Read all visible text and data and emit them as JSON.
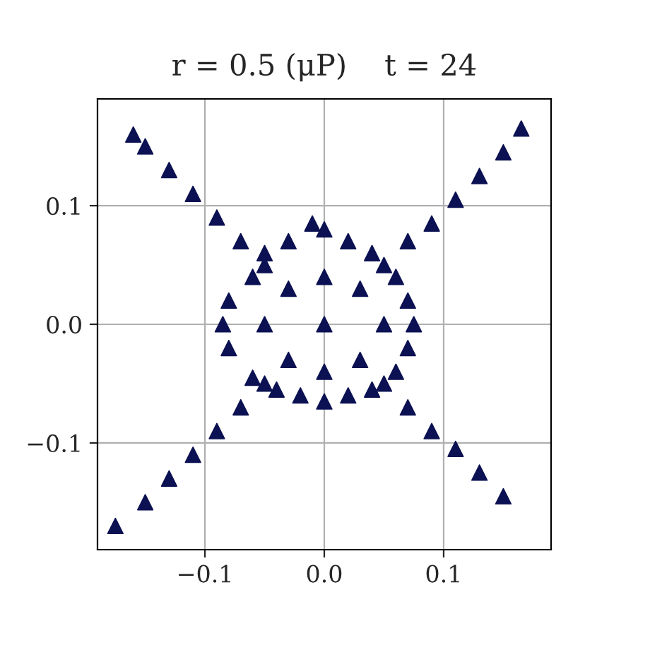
{
  "chart_data": {
    "type": "scatter",
    "title": "r = 0.5 (μP)    t = 24",
    "x": [
      0.07,
      0.09,
      0.11,
      0.13,
      0.15,
      0.165,
      -0.07,
      -0.09,
      -0.11,
      -0.13,
      -0.15,
      -0.16,
      -0.07,
      -0.09,
      -0.11,
      -0.13,
      -0.15,
      -0.175,
      0.07,
      0.09,
      0.11,
      0.13,
      0.15,
      0,
      -0.01,
      0.02,
      -0.03,
      0.04,
      -0.05,
      0.06,
      -0.06,
      0.07,
      -0.08,
      0.075,
      -0.085,
      0.07,
      -0.08,
      0.06,
      -0.06,
      0.04,
      -0.04,
      0.02,
      -0.02,
      0,
      0,
      0.03,
      -0.03,
      0.03,
      -0.03,
      0.05,
      -0.05,
      0,
      0,
      0.05,
      -0.05,
      0.05,
      -0.05
    ],
    "series": [
      {
        "color": "#0b1152",
        "values": [
          0.07,
          0.085,
          0.105,
          0.125,
          0.145,
          0.165,
          0.07,
          0.09,
          0.11,
          0.13,
          0.15,
          0.16,
          -0.07,
          -0.09,
          -0.11,
          -0.13,
          -0.15,
          -0.17,
          -0.07,
          -0.09,
          -0.105,
          -0.125,
          -0.145,
          0.08,
          0.085,
          0.07,
          0.07,
          0.06,
          0.06,
          0.04,
          0.04,
          0.02,
          0.02,
          0,
          0,
          -0.02,
          -0.02,
          -0.04,
          -0.045,
          -0.055,
          -0.055,
          -0.06,
          -0.06,
          -0.065,
          0,
          0.03,
          0.03,
          -0.03,
          -0.03,
          0,
          0,
          0.04,
          -0.04,
          0.05,
          -0.05,
          -0.05,
          0.05
        ]
      }
    ],
    "xlim": [
      -0.19,
      0.19
    ],
    "ylim": [
      -0.19,
      0.19
    ],
    "xticks": [
      {
        "value": -0.1,
        "label": "−0.1"
      },
      {
        "value": 0,
        "label": "0.0"
      },
      {
        "value": 0.1,
        "label": "0.1"
      }
    ],
    "yticks": [
      {
        "value": -0.1,
        "label": "−0.1"
      },
      {
        "value": 0,
        "label": "0.0"
      },
      {
        "value": 0.1,
        "label": "0.1"
      }
    ],
    "grid": true,
    "marker": "triangle"
  }
}
